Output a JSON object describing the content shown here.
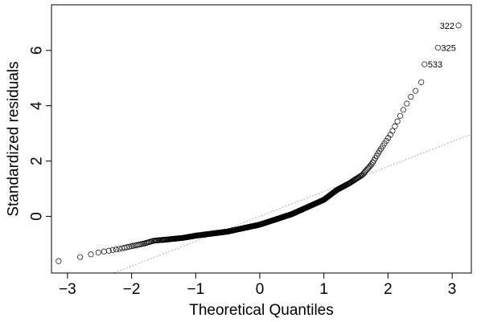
{
  "chart_data": {
    "type": "scatter",
    "title": "",
    "xlabel": "Theoretical Quantiles",
    "ylabel": "Standardized residuals",
    "xlim": [
      -3.25,
      3.3
    ],
    "ylim": [
      -2.05,
      7.65
    ],
    "xticks": [
      -3,
      -2,
      -1,
      0,
      1,
      2,
      3
    ],
    "yticks": [
      0,
      2,
      4,
      6
    ],
    "grid": false,
    "legend": "none",
    "reference_line": {
      "slope": 0.9,
      "intercept": 0,
      "style": "dotted",
      "color": "#999999"
    },
    "point_style": "open-circle",
    "labeled_points": [
      {
        "label": "322",
        "x": 3.1,
        "y": 6.9
      },
      {
        "label": "325",
        "x": 2.78,
        "y": 6.1
      },
      {
        "label": "533",
        "x": 2.57,
        "y": 5.5
      }
    ],
    "anchors": [
      [
        -3.1,
        -1.62
      ],
      [
        -2.85,
        -1.5
      ],
      [
        -2.5,
        -1.3
      ],
      [
        -2.2,
        -1.18
      ],
      [
        -2.0,
        -1.08
      ],
      [
        -1.8,
        -0.98
      ],
      [
        -1.65,
        -0.88
      ],
      [
        -1.5,
        -0.85
      ],
      [
        -1.2,
        -0.78
      ],
      [
        -1.0,
        -0.7
      ],
      [
        -0.5,
        -0.55
      ],
      [
        0.0,
        -0.3
      ],
      [
        0.5,
        0.08
      ],
      [
        1.0,
        0.6
      ],
      [
        1.2,
        0.95
      ],
      [
        1.4,
        1.2
      ],
      [
        1.6,
        1.5
      ],
      [
        1.75,
        1.9
      ],
      [
        1.85,
        2.3
      ],
      [
        1.95,
        2.65
      ],
      [
        2.05,
        3.0
      ],
      [
        2.15,
        3.45
      ],
      [
        2.25,
        3.9
      ],
      [
        2.35,
        4.3
      ],
      [
        2.45,
        4.6
      ],
      [
        2.5,
        4.85
      ]
    ],
    "n_points": 600
  }
}
